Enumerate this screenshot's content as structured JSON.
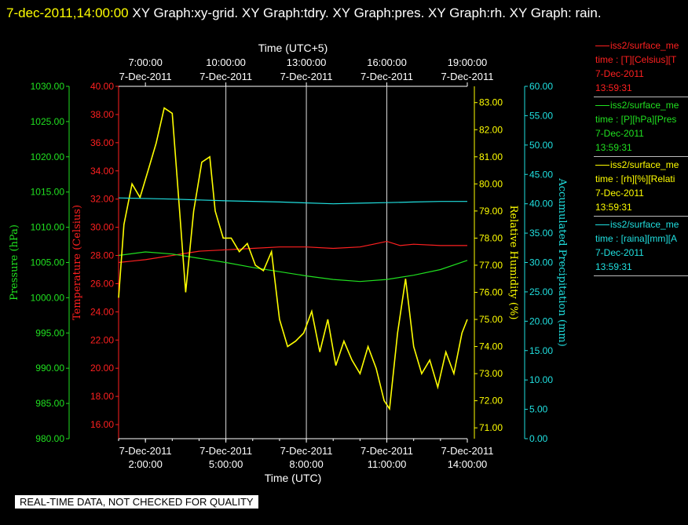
{
  "header": {
    "timestamp": "7-dec-2011,14:00:00",
    "rest": "  XY Graph:xy-grid.  XY Graph:tdry.  XY Graph:pres.  XY Graph:rh.  XY Graph: rain."
  },
  "footer": {
    "notice": "REAL-TIME DATA, NOT CHECKED FOR QUALITY"
  },
  "legend": [
    {
      "line1": "iss2/surface_me",
      "line2": "time : [T][Celsius][T",
      "line3": "7-Dec-2011",
      "line4": "13:59:31",
      "color": "#ff2020"
    },
    {
      "line1": "iss2/surface_me",
      "line2": "time : [P][hPa][Pres",
      "line3": "7-Dec-2011",
      "line4": "13:59:31",
      "color": "#20e020"
    },
    {
      "line1": "iss2/surface_me",
      "line2": "time : [rh][%][Relati",
      "line3": "7-Dec-2011",
      "line4": "13:59:31",
      "color": "#ffff00"
    },
    {
      "line1": "iss2/surface_me",
      "line2": "time : [raina][mm][A",
      "line3": "7-Dec-2011",
      "line4": "13:59:31",
      "color": "#20e0e0"
    }
  ],
  "chart_data": {
    "type": "line",
    "xlabel_bottom": "Time (UTC)",
    "xlabel_top": "Time (UTC+5)",
    "x_range_utc_hours": [
      1,
      14
    ],
    "x_ticks_bottom": [
      {
        "h": 2,
        "date": "7-Dec-2011",
        "time": "2:00:00"
      },
      {
        "h": 5,
        "date": "7-Dec-2011",
        "time": "5:00:00"
      },
      {
        "h": 8,
        "date": "7-Dec-2011",
        "time": "8:00:00"
      },
      {
        "h": 11,
        "date": "7-Dec-2011",
        "time": "11:00:00"
      },
      {
        "h": 14,
        "date": "7-Dec-2011",
        "time": "14:00:00"
      }
    ],
    "x_ticks_top": [
      {
        "h": 2,
        "time": "7:00:00",
        "date": "7-Dec-2011"
      },
      {
        "h": 5,
        "time": "10:00:00",
        "date": "7-Dec-2011"
      },
      {
        "h": 8,
        "time": "13:00:00",
        "date": "7-Dec-2011"
      },
      {
        "h": 11,
        "time": "16:00:00",
        "date": "7-Dec-2011"
      },
      {
        "h": 14,
        "time": "19:00:00",
        "date": "7-Dec-2011"
      }
    ],
    "axes": [
      {
        "key": "pressure",
        "label": "Pressure (hPa)",
        "color": "#20e020",
        "min": 980,
        "max": 1030,
        "step": 5,
        "ticks": [
          "980.00",
          "985.00",
          "990.00",
          "995.00",
          "1000.00",
          "1005.00",
          "1010.00",
          "1015.00",
          "1020.00",
          "1025.00",
          "1030.00"
        ]
      },
      {
        "key": "temperature",
        "label": "Temperature (Celsius)",
        "color": "#ff2020",
        "min": 15,
        "max": 40,
        "step": 2,
        "ticks": [
          "16.00",
          "18.00",
          "20.00",
          "22.00",
          "24.00",
          "26.00",
          "28.00",
          "30.00",
          "32.00",
          "34.00",
          "36.00",
          "38.00",
          "40.00"
        ]
      },
      {
        "key": "humidity",
        "label": "Relative Humidity (%)",
        "color": "#ffff00",
        "min": 70.6,
        "max": 83.6,
        "step": 1,
        "ticks": [
          "71.00",
          "72.00",
          "73.00",
          "74.00",
          "75.00",
          "76.00",
          "77.00",
          "78.00",
          "79.00",
          "80.00",
          "81.00",
          "82.00",
          "83.00"
        ]
      },
      {
        "key": "precip",
        "label": "Accumulated Precipitation (mm)",
        "color": "#20e0e0",
        "min": 0,
        "max": 60,
        "step": 5,
        "ticks": [
          "0.00",
          "5.00",
          "10.00",
          "15.00",
          "20.00",
          "25.00",
          "30.00",
          "35.00",
          "40.00",
          "45.00",
          "50.00",
          "55.00",
          "60.00"
        ]
      }
    ],
    "series": [
      {
        "name": "iss2/surface_met time : [T][Celsius]",
        "axis": "temperature",
        "color": "#ff2020",
        "x": [
          1,
          1.5,
          2,
          3,
          4,
          5,
          6,
          7,
          8,
          9,
          10,
          10.5,
          11,
          11.5,
          12,
          13,
          14
        ],
        "y": [
          27.5,
          27.6,
          27.7,
          28.0,
          28.3,
          28.4,
          28.5,
          28.6,
          28.6,
          28.5,
          28.6,
          28.8,
          29.0,
          28.7,
          28.8,
          28.7,
          28.7
        ]
      },
      {
        "name": "iss2/surface_met time : [P][hPa]",
        "axis": "pressure",
        "color": "#20e020",
        "x": [
          1,
          2,
          3,
          4,
          5,
          6,
          7,
          8,
          9,
          10,
          11,
          12,
          13,
          14
        ],
        "y": [
          1006.0,
          1006.5,
          1006.2,
          1005.6,
          1005.0,
          1004.3,
          1003.7,
          1003.1,
          1002.6,
          1002.3,
          1002.6,
          1003.2,
          1004.0,
          1005.3
        ]
      },
      {
        "name": "iss2/surface_met time : [rh][%]",
        "axis": "humidity",
        "color": "#ffff00",
        "x": [
          1,
          1.2,
          1.5,
          1.8,
          2.1,
          2.4,
          2.7,
          3.0,
          3.2,
          3.5,
          3.8,
          4.1,
          4.4,
          4.6,
          4.9,
          5.2,
          5.5,
          5.8,
          6.1,
          6.4,
          6.7,
          7.0,
          7.3,
          7.6,
          7.9,
          8.2,
          8.5,
          8.8,
          9.1,
          9.4,
          9.7,
          10.0,
          10.3,
          10.6,
          10.9,
          11.1,
          11.4,
          11.7,
          12.0,
          12.3,
          12.6,
          12.9,
          13.2,
          13.5,
          13.8,
          14.0
        ],
        "y": [
          75.8,
          78.5,
          80.0,
          79.5,
          80.5,
          81.5,
          82.8,
          82.6,
          80.0,
          76.0,
          79.0,
          80.8,
          81.0,
          79.0,
          78.0,
          78.0,
          77.5,
          77.8,
          77.0,
          76.8,
          77.5,
          75.0,
          74.0,
          74.2,
          74.5,
          75.3,
          73.8,
          75.0,
          73.3,
          74.2,
          73.5,
          73.0,
          74.0,
          73.2,
          72.0,
          71.7,
          74.5,
          76.5,
          74.0,
          73.0,
          73.5,
          72.5,
          73.8,
          73.0,
          74.5,
          75.0
        ]
      },
      {
        "name": "iss2/surface_met time : [raina][mm]",
        "axis": "precip",
        "color": "#20e0e0",
        "x": [
          1,
          3,
          5,
          7,
          9,
          10,
          11,
          12,
          13,
          14
        ],
        "y": [
          41.0,
          40.8,
          40.5,
          40.3,
          40.0,
          40.1,
          40.2,
          40.3,
          40.4,
          40.4
        ]
      }
    ]
  }
}
